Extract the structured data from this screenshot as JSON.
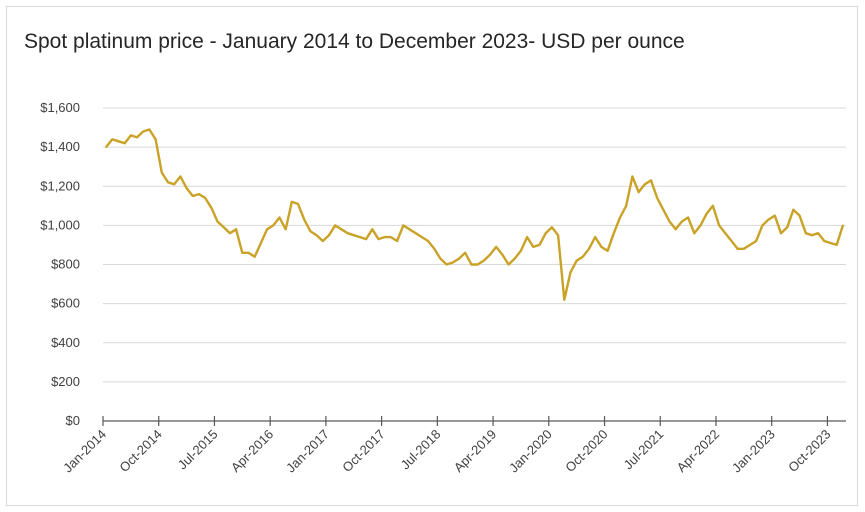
{
  "chart_data": {
    "type": "line",
    "title": "Spot platinum price - January 2014 to December 2023- USD per ounce",
    "xlabel": "",
    "ylabel": "",
    "ylim": [
      0,
      1600
    ],
    "y_ticks": [
      "$0",
      "$200",
      "$400",
      "$600",
      "$800",
      "$1,000",
      "$1,200",
      "$1,400",
      "$1,600"
    ],
    "y_tick_values": [
      0,
      200,
      400,
      600,
      800,
      1000,
      1200,
      1400,
      1600
    ],
    "x_tick_labels": [
      "Jan-2014",
      "Oct-2014",
      "Jul-2015",
      "Apr-2016",
      "Jan-2017",
      "Oct-2017",
      "Jul-2018",
      "Apr-2019",
      "Jan-2020",
      "Oct-2020",
      "Jul-2021",
      "Apr-2022",
      "Jan-2023",
      "Oct-2023"
    ],
    "x_tick_values": [
      "2014-01",
      "2014-10",
      "2015-07",
      "2016-04",
      "2017-01",
      "2017-10",
      "2018-07",
      "2019-04",
      "2020-01",
      "2020-10",
      "2021-07",
      "2022-04",
      "2023-01",
      "2023-10"
    ],
    "x_range": [
      "2014-01",
      "2023-12"
    ],
    "grid": true,
    "line_color": "#c9a227",
    "series": [
      {
        "name": "",
        "x": [
          "2014-01",
          "2014-02",
          "2014-03",
          "2014-04",
          "2014-05",
          "2014-06",
          "2014-07",
          "2014-08",
          "2014-09",
          "2014-10",
          "2014-11",
          "2014-12",
          "2015-01",
          "2015-02",
          "2015-03",
          "2015-04",
          "2015-05",
          "2015-06",
          "2015-07",
          "2015-08",
          "2015-09",
          "2015-10",
          "2015-11",
          "2015-12",
          "2016-01",
          "2016-02",
          "2016-03",
          "2016-04",
          "2016-05",
          "2016-06",
          "2016-07",
          "2016-08",
          "2016-09",
          "2016-10",
          "2016-11",
          "2016-12",
          "2017-01",
          "2017-02",
          "2017-03",
          "2017-04",
          "2017-05",
          "2017-06",
          "2017-07",
          "2017-08",
          "2017-09",
          "2017-10",
          "2017-11",
          "2017-12",
          "2018-01",
          "2018-02",
          "2018-03",
          "2018-04",
          "2018-05",
          "2018-06",
          "2018-07",
          "2018-08",
          "2018-09",
          "2018-10",
          "2018-11",
          "2018-12",
          "2019-01",
          "2019-02",
          "2019-03",
          "2019-04",
          "2019-05",
          "2019-06",
          "2019-07",
          "2019-08",
          "2019-09",
          "2019-10",
          "2019-11",
          "2019-12",
          "2020-01",
          "2020-02",
          "2020-03",
          "2020-04",
          "2020-05",
          "2020-06",
          "2020-07",
          "2020-08",
          "2020-09",
          "2020-10",
          "2020-11",
          "2020-12",
          "2021-01",
          "2021-02",
          "2021-03",
          "2021-04",
          "2021-05",
          "2021-06",
          "2021-07",
          "2021-08",
          "2021-09",
          "2021-10",
          "2021-11",
          "2021-12",
          "2022-01",
          "2022-02",
          "2022-03",
          "2022-04",
          "2022-05",
          "2022-06",
          "2022-07",
          "2022-08",
          "2022-09",
          "2022-10",
          "2022-11",
          "2022-12",
          "2023-01",
          "2023-02",
          "2023-03",
          "2023-04",
          "2023-05",
          "2023-06",
          "2023-07",
          "2023-08",
          "2023-09",
          "2023-10",
          "2023-11",
          "2023-12"
        ],
        "y": [
          1400,
          1440,
          1430,
          1420,
          1460,
          1450,
          1480,
          1490,
          1440,
          1270,
          1220,
          1210,
          1250,
          1190,
          1150,
          1160,
          1140,
          1090,
          1020,
          990,
          960,
          980,
          860,
          860,
          840,
          910,
          980,
          1000,
          1040,
          980,
          1120,
          1110,
          1030,
          970,
          950,
          920,
          950,
          1000,
          980,
          960,
          950,
          940,
          930,
          980,
          930,
          940,
          940,
          920,
          1000,
          980,
          960,
          940,
          920,
          880,
          830,
          800,
          810,
          830,
          860,
          800,
          800,
          820,
          850,
          890,
          850,
          800,
          830,
          870,
          940,
          890,
          900,
          960,
          990,
          950,
          620,
          760,
          820,
          840,
          880,
          940,
          890,
          870,
          960,
          1040,
          1100,
          1250,
          1170,
          1210,
          1230,
          1140,
          1080,
          1020,
          980,
          1020,
          1040,
          960,
          1000,
          1060,
          1100,
          1000,
          960,
          920,
          880,
          880,
          900,
          920,
          1000,
          1030,
          1050,
          960,
          990,
          1080,
          1050,
          960,
          950,
          960,
          920,
          910,
          900,
          1000
        ]
      }
    ]
  }
}
